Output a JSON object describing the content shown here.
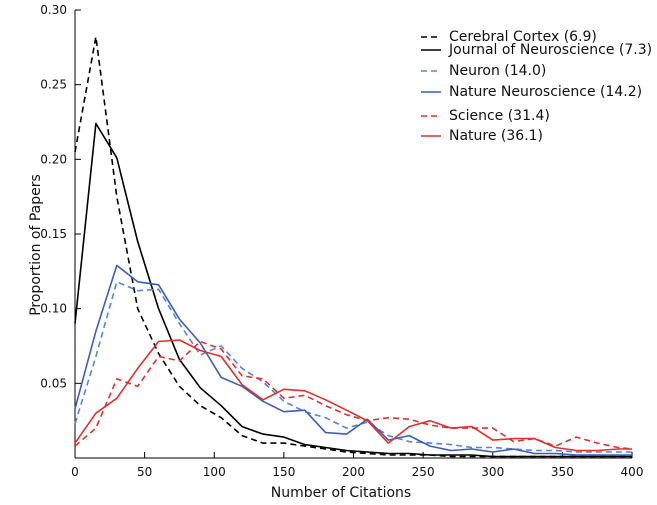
{
  "chart_data": {
    "type": "line",
    "title": "",
    "xlabel": "Number of Citations",
    "ylabel": "Proportion of Papers",
    "xlim": [
      0,
      400
    ],
    "ylim": [
      0,
      0.3
    ],
    "xticks": [
      0,
      50,
      100,
      150,
      200,
      250,
      300,
      350,
      400
    ],
    "yticks": [
      0.05,
      0.1,
      0.15,
      0.2,
      0.25,
      0.3
    ],
    "ytick_labels": [
      "0.05",
      "0.10",
      "0.15",
      "0.20",
      "0.25",
      "0.30"
    ],
    "grid": false,
    "legend_position": "top-right",
    "x": [
      0,
      15,
      30,
      45,
      60,
      75,
      90,
      105,
      120,
      135,
      150,
      165,
      180,
      195,
      210,
      225,
      240,
      255,
      270,
      285,
      300,
      315,
      330,
      345,
      360,
      375,
      390,
      400
    ],
    "series": [
      {
        "name": "Cerebral Cortex (6.9)",
        "color": "#000000",
        "dashed": true,
        "values": [
          0.205,
          0.282,
          0.175,
          0.1,
          0.07,
          0.048,
          0.035,
          0.027,
          0.015,
          0.01,
          0.01,
          0.008,
          0.006,
          0.004,
          0.003,
          0.002,
          0.002,
          0.002,
          0.001,
          0.001,
          0.001,
          0.001,
          0.001,
          0.001,
          0.001,
          0.001,
          0.001,
          0.001
        ]
      },
      {
        "name": "Journal of Neuroscience (7.3)",
        "color": "#000000",
        "dashed": false,
        "values": [
          0.09,
          0.224,
          0.201,
          0.145,
          0.1,
          0.066,
          0.047,
          0.035,
          0.021,
          0.016,
          0.014,
          0.009,
          0.007,
          0.005,
          0.004,
          0.003,
          0.003,
          0.002,
          0.002,
          0.002,
          0.001,
          0.001,
          0.001,
          0.001,
          0.001,
          0.001,
          0.001,
          0.001
        ]
      },
      {
        "name": "Neuron (14.0)",
        "color": "#5b82d8",
        "dashed": true,
        "values": [
          0.023,
          0.068,
          0.118,
          0.112,
          0.113,
          0.09,
          0.069,
          0.075,
          0.06,
          0.051,
          0.038,
          0.031,
          0.027,
          0.02,
          0.024,
          0.015,
          0.011,
          0.01,
          0.009,
          0.007,
          0.007,
          0.006,
          0.005,
          0.005,
          0.004,
          0.004,
          0.004,
          0.004
        ]
      },
      {
        "name": "Nature Neuroscience (14.2)",
        "color": "#3c5fb4",
        "dashed": false,
        "values": [
          0.033,
          0.085,
          0.129,
          0.118,
          0.116,
          0.093,
          0.077,
          0.054,
          0.048,
          0.038,
          0.031,
          0.032,
          0.017,
          0.016,
          0.026,
          0.012,
          0.015,
          0.008,
          0.005,
          0.006,
          0.004,
          0.006,
          0.003,
          0.003,
          0.002,
          0.002,
          0.002,
          0.002
        ]
      },
      {
        "name": "Science (31.4)",
        "color": "#e03030",
        "dashed": true,
        "values": [
          0.008,
          0.02,
          0.053,
          0.048,
          0.068,
          0.065,
          0.078,
          0.073,
          0.055,
          0.053,
          0.04,
          0.042,
          0.035,
          0.029,
          0.025,
          0.027,
          0.026,
          0.022,
          0.02,
          0.02,
          0.02,
          0.011,
          0.013,
          0.008,
          0.014,
          0.01,
          0.007,
          0.006
        ]
      },
      {
        "name": "Nature (36.1)",
        "color": "#e03030",
        "dashed": false,
        "values": [
          0.01,
          0.03,
          0.04,
          0.06,
          0.078,
          0.079,
          0.072,
          0.068,
          0.049,
          0.039,
          0.046,
          0.045,
          0.039,
          0.032,
          0.025,
          0.01,
          0.021,
          0.025,
          0.02,
          0.021,
          0.012,
          0.013,
          0.013,
          0.007,
          0.005,
          0.005,
          0.006,
          0.006
        ]
      }
    ]
  }
}
